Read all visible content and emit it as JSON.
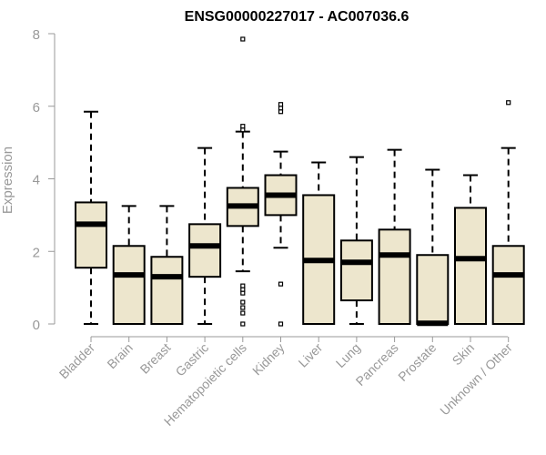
{
  "chart_data": {
    "type": "box",
    "title": "ENSG00000227017 - AC007036.6",
    "xlabel": "",
    "ylabel": "Expression",
    "ylim": [
      0,
      8
    ],
    "yticks": [
      0,
      2,
      4,
      6,
      8
    ],
    "grid": false,
    "legend": "none",
    "categories": [
      "Bladder",
      "Brain",
      "Breast",
      "Gastric",
      "Hematopoietic cells",
      "Kidney",
      "Liver",
      "Lung",
      "Pancreas",
      "Prostate",
      "Skin",
      "Unknown / Other"
    ],
    "boxes": [
      {
        "category": "Bladder",
        "whisker_low": 0.0,
        "q1": 1.55,
        "median": 2.75,
        "q3": 3.35,
        "whisker_high": 5.85,
        "outliers": []
      },
      {
        "category": "Brain",
        "whisker_low": 0.0,
        "q1": 0.0,
        "median": 1.35,
        "q3": 2.15,
        "whisker_high": 3.25,
        "outliers": []
      },
      {
        "category": "Breast",
        "whisker_low": 0.0,
        "q1": 0.0,
        "median": 1.3,
        "q3": 1.85,
        "whisker_high": 3.25,
        "outliers": []
      },
      {
        "category": "Gastric",
        "whisker_low": 0.0,
        "q1": 1.3,
        "median": 2.15,
        "q3": 2.75,
        "whisker_high": 4.85,
        "outliers": []
      },
      {
        "category": "Hematopoietic cells",
        "whisker_low": 1.45,
        "q1": 2.7,
        "median": 3.25,
        "q3": 3.75,
        "whisker_high": 5.3,
        "outliers": [
          0.0,
          0.3,
          0.45,
          0.6,
          0.85,
          0.95,
          1.05,
          5.35,
          5.45,
          7.85
        ]
      },
      {
        "category": "Kidney",
        "whisker_low": 2.1,
        "q1": 3.0,
        "median": 3.55,
        "q3": 4.1,
        "whisker_high": 4.75,
        "outliers": [
          0.0,
          1.1,
          5.85,
          5.95,
          6.05
        ]
      },
      {
        "category": "Liver",
        "whisker_low": 0.0,
        "q1": 0.0,
        "median": 1.75,
        "q3": 3.55,
        "whisker_high": 4.45,
        "outliers": []
      },
      {
        "category": "Lung",
        "whisker_low": 0.0,
        "q1": 0.65,
        "median": 1.7,
        "q3": 2.3,
        "whisker_high": 4.6,
        "outliers": []
      },
      {
        "category": "Pancreas",
        "whisker_low": 0.0,
        "q1": 0.0,
        "median": 1.9,
        "q3": 2.6,
        "whisker_high": 4.8,
        "outliers": []
      },
      {
        "category": "Prostate",
        "whisker_low": 0.0,
        "q1": 0.0,
        "median": 0.02,
        "q3": 1.9,
        "whisker_high": 4.25,
        "outliers": []
      },
      {
        "category": "Skin",
        "whisker_low": 0.0,
        "q1": 0.0,
        "median": 1.8,
        "q3": 3.2,
        "whisker_high": 4.1,
        "outliers": []
      },
      {
        "category": "Unknown / Other",
        "whisker_low": 0.0,
        "q1": 0.0,
        "median": 1.35,
        "q3": 2.15,
        "whisker_high": 4.85,
        "outliers": [
          6.1
        ]
      }
    ],
    "colors": {
      "box_fill": "#ede6cd",
      "box_stroke": "#000000",
      "axis": "#999999",
      "title": "#000000"
    }
  }
}
